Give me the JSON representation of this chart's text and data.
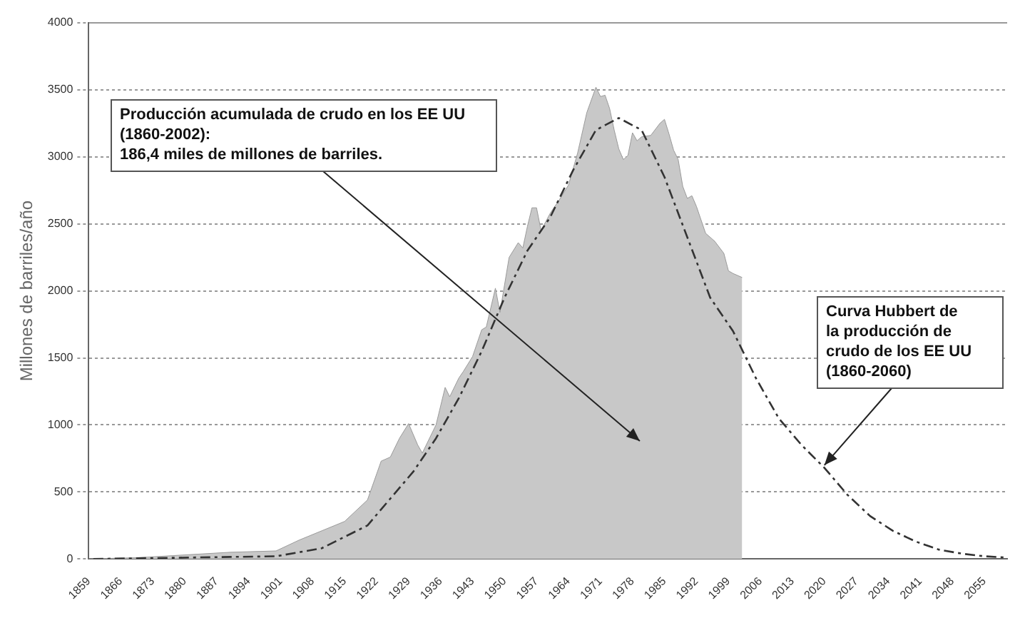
{
  "chart_data": {
    "type": "area",
    "ylabel": "Millones de barriles/año",
    "xlim": [
      1859,
      2060
    ],
    "xticks": [
      1859,
      1866,
      1873,
      1880,
      1887,
      1894,
      1901,
      1908,
      1915,
      1922,
      1929,
      1936,
      1943,
      1950,
      1957,
      1964,
      1971,
      1978,
      1985,
      1992,
      1999,
      2006,
      2013,
      2020,
      2027,
      2034,
      2041,
      2048,
      2055
    ],
    "ylim": [
      0,
      4000
    ],
    "yticks": [
      0,
      500,
      1000,
      1500,
      2000,
      2500,
      3000,
      3500,
      4000
    ],
    "grid": "y",
    "legend": false,
    "series": [
      {
        "color": "#c8c8c8",
        "x": [
          1859,
          1870,
          1880,
          1890,
          1900,
          1905,
          1910,
          1915,
          1920,
          1923,
          1925,
          1927,
          1929,
          1931,
          1932,
          1935,
          1937,
          1938,
          1940,
          1941,
          1943,
          1945,
          1946,
          1948,
          1949,
          1951,
          1953,
          1954,
          1955,
          1956,
          1957,
          1958,
          1960,
          1962,
          1964,
          1966,
          1968,
          1970,
          1971,
          1972,
          1973,
          1974,
          1975,
          1976,
          1977,
          1978,
          1979,
          1980,
          1982,
          1984,
          1985,
          1986,
          1987,
          1988,
          1989,
          1990,
          1991,
          1992,
          1994,
          1996,
          1998,
          1999,
          2000,
          2002
        ],
        "values": [
          0,
          10,
          30,
          50,
          60,
          140,
          210,
          280,
          440,
          730,
          760,
          900,
          1010,
          850,
          790,
          1000,
          1280,
          1210,
          1350,
          1400,
          1510,
          1710,
          1730,
          2020,
          1840,
          2250,
          2360,
          2320,
          2480,
          2620,
          2620,
          2450,
          2580,
          2680,
          2790,
          3030,
          3330,
          3520,
          3450,
          3460,
          3360,
          3200,
          3060,
          2980,
          3010,
          3180,
          3120,
          3150,
          3160,
          3250,
          3280,
          3170,
          3050,
          2980,
          2780,
          2690,
          2710,
          2630,
          2430,
          2370,
          2280,
          2150,
          2130,
          2100
        ]
      },
      {
        "type": "line",
        "color": "#333333",
        "line_style": "dashed",
        "x": [
          1860,
          1900,
          1910,
          1920,
          1925,
          1930,
          1935,
          1940,
          1945,
          1950,
          1955,
          1960,
          1965,
          1970,
          1975,
          1980,
          1985,
          1990,
          1995,
          2000,
          2005,
          2010,
          2015,
          2020,
          2025,
          2030,
          2035,
          2040,
          2045,
          2050,
          2055,
          2060
        ],
        "values": [
          0,
          20,
          80,
          250,
          450,
          650,
          900,
          1200,
          1550,
          1950,
          2300,
          2550,
          2900,
          3200,
          3290,
          3200,
          2850,
          2400,
          1950,
          1700,
          1350,
          1050,
          850,
          680,
          480,
          320,
          210,
          130,
          70,
          40,
          20,
          10
        ]
      }
    ],
    "annotations": [
      "Producción acumulada de crudo en los EE UU (1860-2002):\n186,4 miles de millones de barriles.",
      {
        "text": "Curva Hubbert de\nla producción de\ncrudo de los EE UU\n(1860-2060)",
        "x": 2020,
        "y": 700
      }
    ]
  }
}
